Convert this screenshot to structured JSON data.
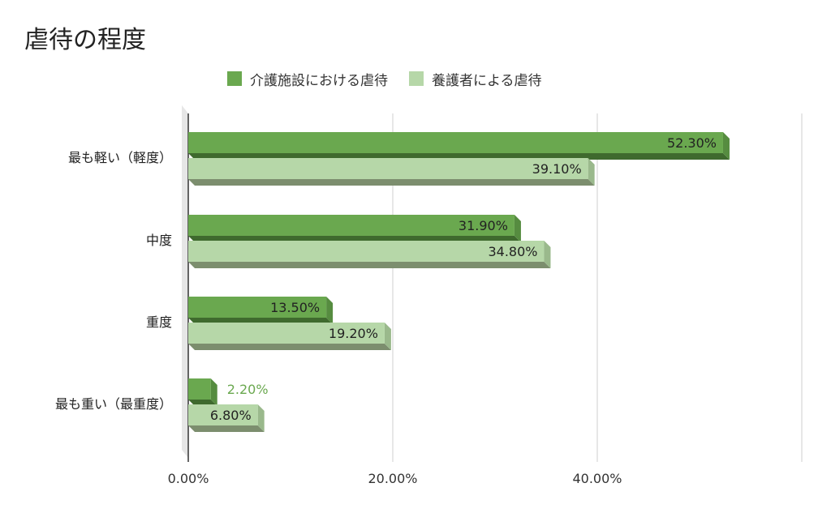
{
  "chart_data": {
    "type": "bar",
    "orientation": "horizontal",
    "title": "虐待の程度",
    "categories": [
      "最も軽い（軽度）",
      "中度",
      "重度",
      "最も重い（最重度）"
    ],
    "series": [
      {
        "name": "介護施設における虐待",
        "values": [
          52.3,
          31.9,
          13.5,
          2.2
        ],
        "labels": [
          "52.30%",
          "31.90%",
          "13.50%",
          "2.20%"
        ],
        "color": "#6aa84f"
      },
      {
        "name": "養護者による虐待",
        "values": [
          39.1,
          34.8,
          19.2,
          6.8
        ],
        "labels": [
          "39.10%",
          "34.80%",
          "19.20%",
          "6.80%"
        ],
        "color": "#b6d7a8"
      }
    ],
    "xticks": [
      "0.00%",
      "20.00%",
      "40.00%"
    ],
    "xlim": [
      0,
      60
    ],
    "grid": true,
    "legend_position": "top"
  }
}
